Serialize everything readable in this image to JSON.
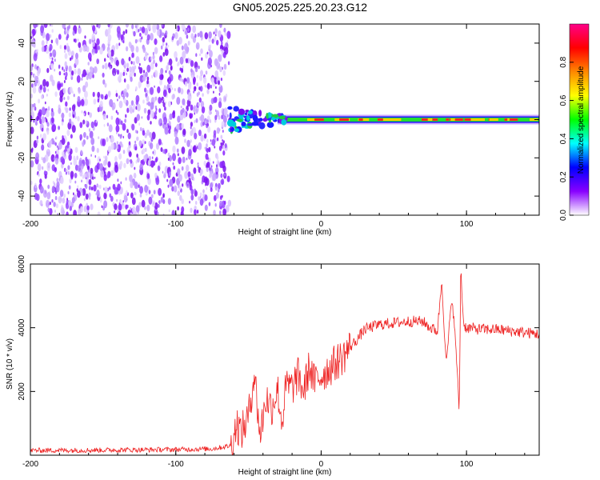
{
  "title": "GN05.2025.225.20.23.G12",
  "chart_data": [
    {
      "type": "heatmap",
      "name": "spectrogram",
      "xlabel": "Height of straight line (km)",
      "ylabel": "Frequency (Hz)",
      "xlim": [
        -200,
        150
      ],
      "ylim": [
        -50,
        50
      ],
      "xticks": [
        -200,
        -100,
        0,
        100
      ],
      "yticks": [
        -40,
        -20,
        0,
        20,
        40
      ],
      "noise_region_x": [
        -200,
        -63
      ],
      "signal_frequency_hz": 0,
      "colorbar": {
        "label": "Normalized spectral amplitude",
        "range": [
          0,
          1
        ],
        "ticks": [
          0.0,
          0.2,
          0.4,
          0.6,
          0.8
        ],
        "colors": [
          "#ffffff",
          "#8800ff",
          "#0000ff",
          "#00ffff",
          "#00ff00",
          "#ffff00",
          "#ff8800",
          "#ff0000",
          "#ff0088"
        ]
      }
    },
    {
      "type": "line",
      "name": "snr",
      "xlabel": "Height of straight line (km)",
      "ylabel": "SNR (10 * v/v)",
      "xlim": [
        -200,
        150
      ],
      "ylim": [
        0,
        6000
      ],
      "xticks": [
        -200,
        -100,
        0,
        100
      ],
      "yticks": [
        2000,
        4000,
        6000
      ],
      "color": "#ee2222",
      "series": [
        {
          "x": [
            -200,
            -150,
            -100,
            -75,
            -62,
            -58,
            -55,
            -50,
            -46,
            -42,
            -38,
            -34,
            -30,
            -27,
            -24,
            -20,
            -16,
            -12,
            -8,
            -5,
            -2,
            0,
            5,
            10,
            15,
            20,
            25,
            30,
            40,
            50,
            60,
            70,
            75,
            80,
            83,
            86,
            90,
            93,
            95,
            96,
            98,
            100,
            110,
            120,
            130,
            140,
            150
          ],
          "y": [
            150,
            160,
            180,
            200,
            300,
            1000,
            700,
            1200,
            2600,
            600,
            1800,
            1500,
            2100,
            1000,
            2200,
            2100,
            2500,
            2000,
            2800,
            2300,
            2400,
            2500,
            2700,
            2900,
            3100,
            3400,
            3650,
            3950,
            4100,
            4150,
            4200,
            4200,
            4000,
            3900,
            5500,
            2800,
            5000,
            3200,
            1300,
            5900,
            4100,
            4000,
            3950,
            3950,
            3900,
            3850,
            3800
          ]
        }
      ]
    }
  ]
}
